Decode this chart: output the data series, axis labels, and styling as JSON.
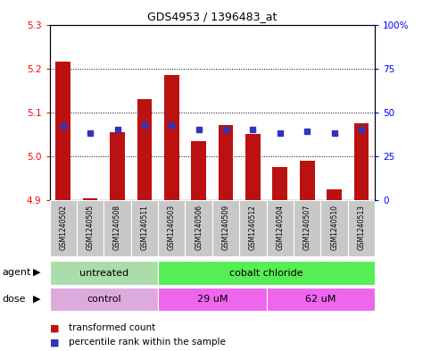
{
  "title": "GDS4953 / 1396483_at",
  "samples": [
    "GSM1240502",
    "GSM1240505",
    "GSM1240508",
    "GSM1240511",
    "GSM1240503",
    "GSM1240506",
    "GSM1240509",
    "GSM1240512",
    "GSM1240504",
    "GSM1240507",
    "GSM1240510",
    "GSM1240513"
  ],
  "transformed_count": [
    5.215,
    4.905,
    5.055,
    5.13,
    5.185,
    5.035,
    5.07,
    5.05,
    4.975,
    4.99,
    4.925,
    5.075
  ],
  "percentile_rank": [
    42,
    38,
    40,
    43,
    43,
    40,
    40,
    40,
    38,
    39,
    38,
    40
  ],
  "bar_base": 4.9,
  "ylim_left": [
    4.9,
    5.3
  ],
  "ylim_right": [
    0,
    100
  ],
  "yticks_left": [
    4.9,
    5.0,
    5.1,
    5.2,
    5.3
  ],
  "yticks_right": [
    0,
    25,
    50,
    75,
    100
  ],
  "ytick_labels_right": [
    "0",
    "25",
    "50",
    "75",
    "100%"
  ],
  "bar_color": "#bb1111",
  "dot_color": "#3333bb",
  "agent_groups": [
    {
      "label": "untreated",
      "start": 0,
      "end": 4,
      "color": "#aaddaa"
    },
    {
      "label": "cobalt chloride",
      "start": 4,
      "end": 12,
      "color": "#55ee55"
    }
  ],
  "dose_groups": [
    {
      "label": "control",
      "start": 0,
      "end": 4,
      "color": "#ddaadd"
    },
    {
      "label": "29 uM",
      "start": 4,
      "end": 8,
      "color": "#ee66ee"
    },
    {
      "label": "62 uM",
      "start": 8,
      "end": 12,
      "color": "#ee66ee"
    }
  ],
  "legend_bar_label": "transformed count",
  "legend_dot_label": "percentile rank within the sample",
  "xlabel_agent": "agent",
  "xlabel_dose": "dose",
  "sample_bg_color": "#c8c8c8",
  "right_tick_labels": [
    "0",
    "25",
    "50",
    "75",
    "100%"
  ]
}
